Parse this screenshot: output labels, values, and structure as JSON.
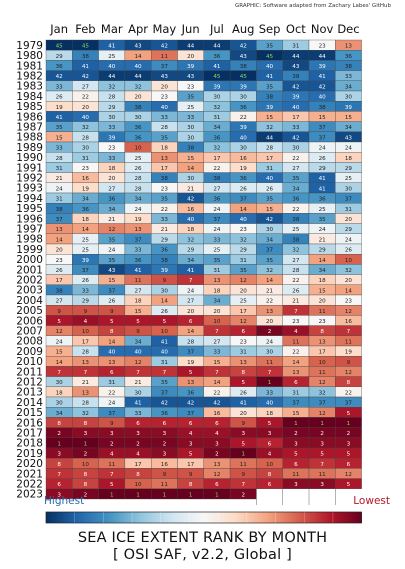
{
  "credit": "GRAPHIC: Software adapted from Zachary Labes' GitHub",
  "colorbar": {
    "high_label": "Highest",
    "low_label": "Lowest",
    "color_high": "#053061",
    "color_low": "#67001f"
  },
  "title_line1": "SEA ICE EXTENT RANK BY MONTH",
  "title_line2": "[ OSI SAF, v2.2, Global ]",
  "chart_data": {
    "type": "heatmap",
    "title": "SEA ICE EXTENT RANK BY MONTH [ OSI SAF, v2.2, Global ]",
    "months": [
      "Jan",
      "Feb",
      "Mar",
      "Apr",
      "May",
      "Jun",
      "Jul",
      "Aug",
      "Sep",
      "Oct",
      "Nov",
      "Dec"
    ],
    "years": [
      "1979",
      "1980",
      "1981",
      "1982",
      "1983",
      "1984",
      "1985",
      "1986",
      "1987",
      "1988",
      "1989",
      "1990",
      "1991",
      "1992",
      "1993",
      "1994",
      "1995",
      "1996",
      "1997",
      "1998",
      "1999",
      "2000",
      "2001",
      "2002",
      "2003",
      "2004",
      "2005",
      "2006",
      "2007",
      "2008",
      "2009",
      "2010",
      "2011",
      "2012",
      "2013",
      "2014",
      "2015",
      "2016",
      "2017",
      "2018",
      "2019",
      "2020",
      "2021",
      "2022",
      "2023"
    ],
    "rank_min": 1,
    "rank_max": 45,
    "ranks": [
      [
        45,
        45,
        41,
        43,
        42,
        44,
        44,
        42,
        35,
        31,
        23,
        13
      ],
      [
        29,
        38,
        25,
        14,
        11,
        20,
        36,
        43,
        45,
        44,
        44,
        36
      ],
      [
        36,
        41,
        40,
        40,
        37,
        39,
        41,
        38,
        40,
        43,
        39,
        38
      ],
      [
        42,
        42,
        44,
        44,
        43,
        43,
        45,
        45,
        41,
        38,
        41,
        33
      ],
      [
        33,
        27,
        32,
        32,
        20,
        23,
        39,
        39,
        35,
        42,
        42,
        34
      ],
      [
        26,
        22,
        28,
        20,
        23,
        35,
        30,
        30,
        38,
        39,
        40,
        30
      ],
      [
        19,
        20,
        29,
        38,
        40,
        25,
        32,
        36,
        39,
        40,
        38,
        39
      ],
      [
        41,
        40,
        30,
        30,
        33,
        33,
        31,
        22,
        15,
        17,
        15,
        15
      ],
      [
        35,
        32,
        33,
        36,
        28,
        30,
        34,
        39,
        32,
        33,
        37,
        34
      ],
      [
        15,
        28,
        39,
        36,
        35,
        30,
        36,
        40,
        44,
        42,
        37,
        43
      ],
      [
        33,
        30,
        23,
        10,
        18,
        38,
        32,
        30,
        28,
        30,
        24,
        24
      ],
      [
        28,
        31,
        33,
        25,
        13,
        15,
        17,
        16,
        17,
        22,
        26,
        18
      ],
      [
        31,
        23,
        18,
        26,
        17,
        14,
        22,
        19,
        31,
        27,
        29,
        29
      ],
      [
        21,
        16,
        20,
        28,
        38,
        30,
        38,
        36,
        40,
        35,
        41,
        25
      ],
      [
        24,
        19,
        27,
        28,
        23,
        21,
        27,
        26,
        26,
        34,
        41,
        30
      ],
      [
        31,
        34,
        36,
        34,
        35,
        42,
        36,
        37,
        35,
        36,
        36,
        37
      ],
      [
        38,
        36,
        34,
        24,
        22,
        16,
        24,
        14,
        15,
        22,
        25,
        31
      ],
      [
        37,
        18,
        21,
        19,
        33,
        40,
        37,
        40,
        42,
        38,
        35,
        20
      ],
      [
        13,
        14,
        12,
        13,
        21,
        18,
        24,
        23,
        30,
        25,
        24,
        29
      ],
      [
        14,
        25,
        35,
        37,
        29,
        32,
        33,
        32,
        34,
        38,
        21,
        24
      ],
      [
        20,
        25,
        24,
        33,
        36,
        29,
        25,
        29,
        37,
        32,
        29,
        26
      ],
      [
        23,
        39,
        35,
        36,
        38,
        34,
        35,
        31,
        35,
        27,
        14,
        10
      ],
      [
        26,
        37,
        43,
        41,
        39,
        41,
        31,
        35,
        32,
        28,
        34,
        32
      ],
      [
        17,
        26,
        15,
        11,
        9,
        7,
        13,
        12,
        14,
        22,
        18,
        20
      ],
      [
        38,
        33,
        37,
        27,
        30,
        24,
        18,
        20,
        21,
        26,
        15,
        14
      ],
      [
        27,
        29,
        26,
        18,
        14,
        27,
        34,
        25,
        22,
        21,
        20,
        23
      ],
      [
        9,
        9,
        9,
        15,
        26,
        20,
        20,
        17,
        13,
        7,
        11,
        12
      ],
      [
        5,
        4,
        5,
        5,
        5,
        6,
        10,
        12,
        20,
        23,
        23,
        16
      ],
      [
        12,
        10,
        8,
        9,
        10,
        14,
        7,
        6,
        2,
        4,
        8,
        7
      ],
      [
        24,
        17,
        14,
        34,
        41,
        28,
        27,
        23,
        24,
        11,
        13,
        11
      ],
      [
        15,
        28,
        40,
        40,
        40,
        37,
        33,
        31,
        30,
        22,
        17,
        19
      ],
      [
        14,
        13,
        13,
        12,
        31,
        19,
        15,
        13,
        11,
        14,
        10,
        9
      ],
      [
        7,
        7,
        6,
        7,
        7,
        5,
        7,
        8,
        7,
        13,
        11,
        12
      ],
      [
        30,
        21,
        31,
        21,
        35,
        13,
        14,
        5,
        1,
        6,
        12,
        8
      ],
      [
        18,
        13,
        22,
        30,
        37,
        36,
        22,
        26,
        33,
        31,
        32,
        22
      ],
      [
        30,
        28,
        24,
        41,
        42,
        42,
        42,
        41,
        40,
        37,
        37,
        37
      ],
      [
        34,
        32,
        37,
        33,
        36,
        37,
        16,
        20,
        18,
        15,
        12,
        5
      ],
      [
        8,
        8,
        9,
        6,
        6,
        6,
        6,
        9,
        5,
        1,
        1,
        1
      ],
      [
        2,
        3,
        3,
        3,
        3,
        4,
        4,
        3,
        3,
        2,
        2,
        2
      ],
      [
        1,
        1,
        2,
        2,
        2,
        3,
        3,
        5,
        6,
        3,
        3,
        3
      ],
      [
        3,
        2,
        4,
        4,
        3,
        5,
        2,
        1,
        4,
        5,
        5,
        5
      ],
      [
        8,
        10,
        11,
        17,
        16,
        17,
        13,
        11,
        10,
        6,
        7,
        6
      ],
      [
        7,
        8,
        7,
        8,
        9,
        9,
        12,
        9,
        8,
        11,
        11,
        12
      ],
      [
        6,
        8,
        5,
        10,
        11,
        8,
        6,
        7,
        6,
        3,
        3,
        5
      ],
      [
        3,
        2,
        1,
        1,
        1,
        1,
        1,
        2
      ]
    ]
  }
}
